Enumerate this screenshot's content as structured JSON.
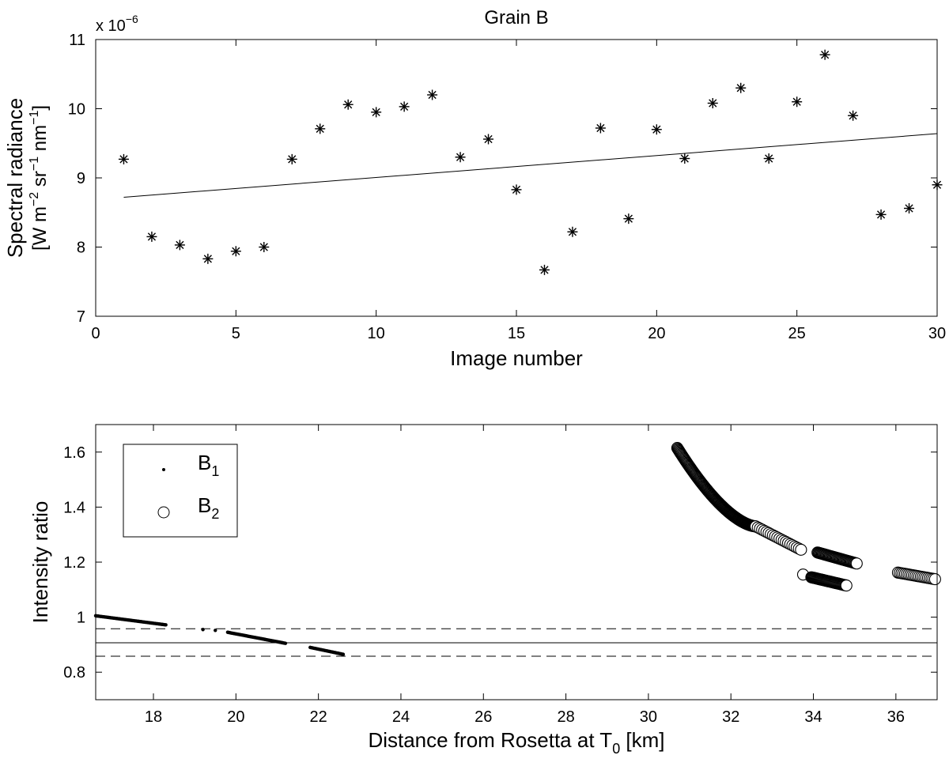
{
  "chart_data": [
    {
      "type": "scatter",
      "title": "Grain B",
      "xlabel": "Image number",
      "ylabel_line1": "Spectral radiance",
      "ylabel_line2": "[W m^-2 sr^-1 nm^-1]",
      "y_multiplier": "x 10^-6",
      "xlim": [
        0,
        30
      ],
      "ylim": [
        7,
        11
      ],
      "xticks": [
        0,
        5,
        10,
        15,
        20,
        25,
        30
      ],
      "yticks": [
        7,
        8,
        9,
        10,
        11
      ],
      "grid": false,
      "series": [
        {
          "marker": "asterisk",
          "x": [
            1,
            2,
            3,
            4,
            5,
            6,
            7,
            8,
            9,
            10,
            11,
            12,
            13,
            14,
            15,
            16,
            17,
            18,
            19,
            20,
            21,
            22,
            23,
            24,
            25,
            26,
            27,
            28,
            29,
            30
          ],
          "y": [
            9.27,
            8.15,
            8.03,
            7.83,
            7.94,
            8.0,
            9.27,
            9.71,
            10.06,
            9.95,
            10.03,
            10.2,
            9.3,
            9.56,
            8.83,
            7.67,
            8.22,
            9.72,
            8.41,
            9.7,
            9.28,
            10.08,
            10.3,
            9.28,
            10.1,
            10.78,
            9.9,
            8.47,
            8.56,
            8.9
          ]
        }
      ],
      "trend_line": {
        "x": [
          1,
          30
        ],
        "y": [
          8.72,
          9.64
        ]
      }
    },
    {
      "type": "scatter",
      "title": "",
      "xlabel": "Distance from Rosetta at T_0 [km]",
      "ylabel": "Intensity ratio",
      "xlim": [
        16.6,
        37.0
      ],
      "ylim": [
        0.7,
        1.7
      ],
      "xticks": [
        18,
        20,
        22,
        24,
        26,
        28,
        30,
        32,
        34,
        36
      ],
      "yticks": [
        0.8,
        1.0,
        1.2,
        1.4,
        1.6
      ],
      "ytick_labels": [
        "0.8",
        "1",
        "1.2",
        "1.4",
        "1.6"
      ],
      "grid": false,
      "legend_position": "top-left",
      "series": [
        {
          "name": "B_1",
          "legend_main": "B",
          "legend_sub": "1",
          "marker": "dot",
          "segments": [
            {
              "x": [
                16.6,
                18.3
              ],
              "y": [
                1.005,
                0.972
              ],
              "n": 60
            },
            {
              "x": [
                19.2,
                19.2
              ],
              "y": [
                0.955,
                0.955
              ],
              "n": 1
            },
            {
              "x": [
                19.5,
                19.5
              ],
              "y": [
                0.952,
                0.952
              ],
              "n": 1
            },
            {
              "x": [
                19.8,
                21.2
              ],
              "y": [
                0.945,
                0.905
              ],
              "n": 55
            },
            {
              "x": [
                21.8,
                22.6
              ],
              "y": [
                0.89,
                0.865
              ],
              "n": 30
            }
          ]
        },
        {
          "name": "B_2",
          "legend_main": "B",
          "legend_sub": "2",
          "marker": "circle",
          "segments": [
            {
              "x": [
                30.7,
                32.6
              ],
              "y": [
                1.615,
                1.33
              ],
              "n": 140,
              "curve": 1.6
            },
            {
              "x": [
                32.6,
                33.7
              ],
              "y": [
                1.33,
                1.245
              ],
              "n": 22
            },
            {
              "x": [
                33.75,
                33.75
              ],
              "y": [
                1.155,
                1.155
              ],
              "n": 1
            },
            {
              "x": [
                33.95,
                34.8
              ],
              "y": [
                1.145,
                1.115
              ],
              "n": 45
            },
            {
              "x": [
                34.1,
                35.05
              ],
              "y": [
                1.235,
                1.195
              ],
              "n": 45
            },
            {
              "x": [
                36.05,
                36.95
              ],
              "y": [
                1.162,
                1.138
              ],
              "n": 22
            }
          ]
        }
      ],
      "hlines": [
        {
          "y": 0.907,
          "style": "solid"
        },
        {
          "y": 0.958,
          "style": "dashed"
        },
        {
          "y": 0.858,
          "style": "dashed"
        }
      ]
    }
  ]
}
